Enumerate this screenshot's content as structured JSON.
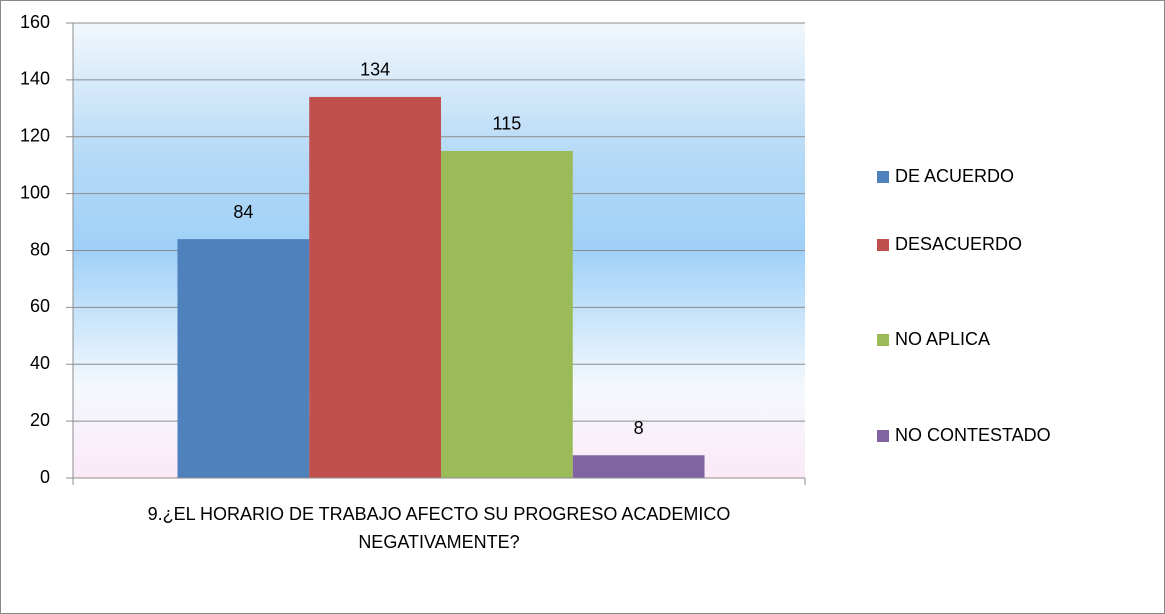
{
  "chart_data": {
    "type": "bar",
    "categories": [
      "9.¿EL HORARIO DE TRABAJO AFECTO SU PROGRESO ACADEMICO NEGATIVAMENTE?"
    ],
    "series": [
      {
        "name": "DE ACUERDO",
        "color": "#4f81bd",
        "values": [
          84
        ]
      },
      {
        "name": "DESACUERDO",
        "color": "#c0504d",
        "values": [
          134
        ]
      },
      {
        "name": "NO APLICA",
        "color": "#9bbb59",
        "values": [
          115
        ]
      },
      {
        "name": "NO CONTESTADO",
        "color": "#8064a2",
        "values": [
          8
        ]
      }
    ],
    "ylim": [
      0,
      160
    ],
    "yticks": [
      0,
      20,
      40,
      60,
      80,
      100,
      120,
      140,
      160
    ],
    "grid": true,
    "legend": "right",
    "data_labels": true
  }
}
